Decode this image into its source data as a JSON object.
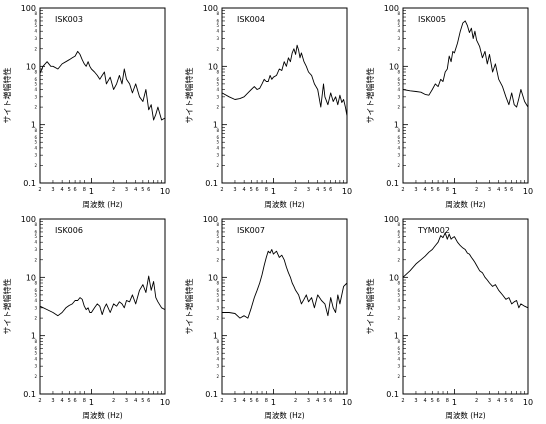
{
  "figure": {
    "line_color": "#000000",
    "background": "#ffffff"
  },
  "chart_data": [
    {
      "type": "line",
      "title": "ISK003",
      "xscale": "log",
      "yscale": "log",
      "xlim": [
        0.2,
        10
      ],
      "ylim": [
        0.1,
        100
      ],
      "xlabel": "周波数 (Hz)",
      "ylabel": "サイト増幅特性",
      "xtick_labels": [
        "2",
        "3",
        "4",
        "5",
        "6",
        "8",
        "1",
        "2",
        "3",
        "4",
        "5",
        "6",
        "10"
      ],
      "ytick_labels": [
        "0.1",
        "1",
        "10",
        "100"
      ],
      "series": [
        {
          "x": [
            0.2,
            0.22,
            0.25,
            0.28,
            0.3,
            0.35,
            0.4,
            0.45,
            0.5,
            0.55,
            0.6,
            0.65,
            0.7,
            0.75,
            0.8,
            0.85,
            0.9,
            0.95,
            1.0,
            1.1,
            1.2,
            1.3,
            1.4,
            1.5,
            1.6,
            1.8,
            2.0,
            2.2,
            2.4,
            2.6,
            2.8,
            3.0,
            3.3,
            3.6,
            4.0,
            4.5,
            5.0,
            5.5,
            6.0,
            6.5,
            7.0,
            7.5,
            8.0,
            9.0,
            10.0
          ],
          "y": [
            7.5,
            10,
            12,
            10,
            10,
            9,
            11,
            12,
            13,
            14,
            15,
            18,
            16,
            13,
            11,
            10,
            12,
            10,
            9,
            8,
            7,
            6,
            7,
            8,
            5,
            6.5,
            4,
            5,
            7,
            5,
            9,
            6,
            5,
            3.5,
            5,
            3,
            2.5,
            4,
            1.8,
            2.2,
            1.2,
            1.5,
            2.0,
            1.2,
            1.3
          ]
        }
      ]
    },
    {
      "type": "line",
      "title": "ISK004",
      "xscale": "log",
      "yscale": "log",
      "xlim": [
        0.2,
        10
      ],
      "ylim": [
        0.1,
        100
      ],
      "xlabel": "周波数 (Hz)",
      "ylabel": "サイト増幅特性",
      "xtick_labels": [
        "2",
        "3",
        "4",
        "5",
        "6",
        "8",
        "1",
        "2",
        "3",
        "4",
        "5",
        "6",
        "10"
      ],
      "ytick_labels": [
        "0.1",
        "1",
        "10",
        "100"
      ],
      "series": [
        {
          "x": [
            0.2,
            0.25,
            0.3,
            0.35,
            0.4,
            0.45,
            0.5,
            0.55,
            0.6,
            0.65,
            0.7,
            0.75,
            0.8,
            0.85,
            0.9,
            0.95,
            1.0,
            1.1,
            1.2,
            1.3,
            1.4,
            1.5,
            1.6,
            1.7,
            1.8,
            1.9,
            2.0,
            2.1,
            2.2,
            2.3,
            2.4,
            2.6,
            2.8,
            3.0,
            3.3,
            3.6,
            4.0,
            4.4,
            4.8,
            5.0,
            5.5,
            6.0,
            6.5,
            7.0,
            7.5,
            8.0,
            8.5,
            9.0,
            9.5,
            10.0
          ],
          "y": [
            3.5,
            3.0,
            2.7,
            2.8,
            3.0,
            3.5,
            4.0,
            4.5,
            4.0,
            4.2,
            5.0,
            6.0,
            5.5,
            5.5,
            7.0,
            6.0,
            6.5,
            7.0,
            9.0,
            8.5,
            12,
            10,
            14,
            12,
            17,
            20,
            16,
            23,
            19,
            14,
            17,
            12,
            10,
            8,
            7,
            5,
            4,
            2.0,
            5,
            3,
            2.2,
            3.5,
            2.5,
            3.0,
            2.2,
            3.2,
            2.4,
            2.7,
            2.0,
            1.4
          ]
        }
      ]
    },
    {
      "type": "line",
      "title": "ISK005",
      "xscale": "log",
      "yscale": "log",
      "xlim": [
        0.2,
        10
      ],
      "ylim": [
        0.1,
        100
      ],
      "xlabel": "周波数 (Hz)",
      "ylabel": "サイト増幅特性",
      "xtick_labels": [
        "2",
        "3",
        "4",
        "5",
        "6",
        "8",
        "1",
        "2",
        "3",
        "4",
        "5",
        "6",
        "10"
      ],
      "ytick_labels": [
        "0.1",
        "1",
        "10",
        "100"
      ],
      "series": [
        {
          "x": [
            0.2,
            0.25,
            0.3,
            0.35,
            0.4,
            0.45,
            0.5,
            0.55,
            0.6,
            0.65,
            0.7,
            0.75,
            0.8,
            0.85,
            0.9,
            0.95,
            1.0,
            1.1,
            1.2,
            1.3,
            1.4,
            1.5,
            1.6,
            1.7,
            1.8,
            1.9,
            2.0,
            2.2,
            2.4,
            2.6,
            2.8,
            3.0,
            3.3,
            3.6,
            4.0,
            4.5,
            5.0,
            5.5,
            6.0,
            6.5,
            7.0,
            7.5,
            8.0,
            9.0,
            10.0
          ],
          "y": [
            4.0,
            3.8,
            3.7,
            3.6,
            3.3,
            3.2,
            4.0,
            5.0,
            4.5,
            6.0,
            5.5,
            8.0,
            9.0,
            15,
            12,
            18,
            17,
            25,
            40,
            55,
            60,
            50,
            38,
            45,
            30,
            40,
            28,
            22,
            14,
            18,
            11,
            16,
            8,
            11,
            6,
            4.5,
            3.0,
            2.2,
            3.5,
            2.2,
            2.0,
            2.8,
            4.0,
            2.5,
            2.0
          ]
        }
      ]
    },
    {
      "type": "line",
      "title": "ISK006",
      "xscale": "log",
      "yscale": "log",
      "xlim": [
        0.2,
        10
      ],
      "ylim": [
        0.1,
        100
      ],
      "xlabel": "周波数 (Hz)",
      "ylabel": "サイト増幅特性",
      "xtick_labels": [
        "2",
        "3",
        "4",
        "5",
        "6",
        "8",
        "1",
        "2",
        "3",
        "4",
        "5",
        "6",
        "10"
      ],
      "ytick_labels": [
        "0.1",
        "1",
        "10",
        "100"
      ],
      "series": [
        {
          "x": [
            0.2,
            0.25,
            0.3,
            0.35,
            0.4,
            0.45,
            0.5,
            0.55,
            0.6,
            0.65,
            0.7,
            0.75,
            0.8,
            0.85,
            0.9,
            0.95,
            1.0,
            1.1,
            1.2,
            1.3,
            1.4,
            1.5,
            1.6,
            1.8,
            2.0,
            2.2,
            2.4,
            2.6,
            2.8,
            3.0,
            3.3,
            3.6,
            4.0,
            4.5,
            5.0,
            5.5,
            6.0,
            6.5,
            7.0,
            7.5,
            8.0,
            9.0,
            10.0
          ],
          "y": [
            3.2,
            2.8,
            2.5,
            2.2,
            2.5,
            3.0,
            3.3,
            3.5,
            4.0,
            4.0,
            4.5,
            4.2,
            3.2,
            2.8,
            3.0,
            2.5,
            2.5,
            3.0,
            3.5,
            3.2,
            2.3,
            3.0,
            3.5,
            2.5,
            3.5,
            3.2,
            3.8,
            3.5,
            3.0,
            4.0,
            3.8,
            5.0,
            3.5,
            6.0,
            7.5,
            5.5,
            10.5,
            6.0,
            8.5,
            4.5,
            3.8,
            3.0,
            2.8
          ]
        }
      ]
    },
    {
      "type": "line",
      "title": "ISK007",
      "xscale": "log",
      "yscale": "log",
      "xlim": [
        0.2,
        10
      ],
      "ylim": [
        0.1,
        100
      ],
      "xlabel": "周波数 (Hz)",
      "ylabel": "サイト増幅特性",
      "xtick_labels": [
        "2",
        "3",
        "4",
        "5",
        "6",
        "8",
        "1",
        "2",
        "3",
        "4",
        "5",
        "6",
        "10"
      ],
      "ytick_labels": [
        "0.1",
        "1",
        "10",
        "100"
      ],
      "series": [
        {
          "x": [
            0.2,
            0.25,
            0.3,
            0.35,
            0.4,
            0.45,
            0.5,
            0.55,
            0.6,
            0.65,
            0.7,
            0.75,
            0.8,
            0.85,
            0.9,
            0.95,
            1.0,
            1.1,
            1.2,
            1.3,
            1.4,
            1.5,
            1.6,
            1.7,
            1.8,
            1.9,
            2.0,
            2.2,
            2.4,
            2.6,
            2.8,
            3.0,
            3.3,
            3.6,
            4.0,
            4.5,
            5.0,
            5.5,
            6.0,
            6.5,
            7.0,
            7.5,
            8.0,
            9.0,
            10.0
          ],
          "y": [
            2.5,
            2.5,
            2.4,
            2.0,
            2.2,
            2.0,
            3.0,
            4.5,
            6.0,
            8.0,
            11,
            16,
            22,
            28,
            26,
            30,
            25,
            28,
            22,
            24,
            20,
            15,
            12,
            10,
            8,
            7,
            6,
            5,
            3.5,
            4.2,
            5.0,
            3.8,
            4.5,
            3.0,
            5.0,
            4.0,
            3.5,
            2.2,
            4.5,
            3.0,
            2.5,
            5.0,
            3.5,
            7.0,
            8.0
          ]
        }
      ]
    },
    {
      "type": "line",
      "title": "TYM002",
      "xscale": "log",
      "yscale": "log",
      "xlim": [
        0.2,
        10
      ],
      "ylim": [
        0.1,
        100
      ],
      "xlabel": "周波数 (Hz)",
      "ylabel": "サイト増幅特性",
      "xtick_labels": [
        "2",
        "3",
        "4",
        "5",
        "6",
        "8",
        "1",
        "2",
        "3",
        "4",
        "5",
        "6",
        "10"
      ],
      "ytick_labels": [
        "0.1",
        "1",
        "10",
        "100"
      ],
      "series": [
        {
          "x": [
            0.2,
            0.25,
            0.3,
            0.35,
            0.4,
            0.45,
            0.5,
            0.55,
            0.6,
            0.65,
            0.7,
            0.75,
            0.8,
            0.85,
            0.9,
            0.95,
            1.0,
            1.1,
            1.2,
            1.3,
            1.4,
            1.5,
            1.6,
            1.7,
            1.8,
            1.9,
            2.0,
            2.2,
            2.4,
            2.6,
            2.8,
            3.0,
            3.3,
            3.6,
            4.0,
            4.5,
            5.0,
            5.5,
            6.0,
            6.5,
            7.0,
            7.5,
            8.0,
            9.0,
            10.0
          ],
          "y": [
            10,
            13,
            17,
            20,
            23,
            27,
            30,
            35,
            40,
            52,
            48,
            58,
            45,
            55,
            45,
            48,
            50,
            40,
            35,
            32,
            30,
            26,
            25,
            22,
            20,
            18,
            16,
            13,
            12,
            10,
            9,
            8,
            7,
            7.5,
            6,
            5,
            4.2,
            4.5,
            3.5,
            3.8,
            4.0,
            3.0,
            3.5,
            3.2,
            3.0
          ]
        }
      ]
    }
  ]
}
